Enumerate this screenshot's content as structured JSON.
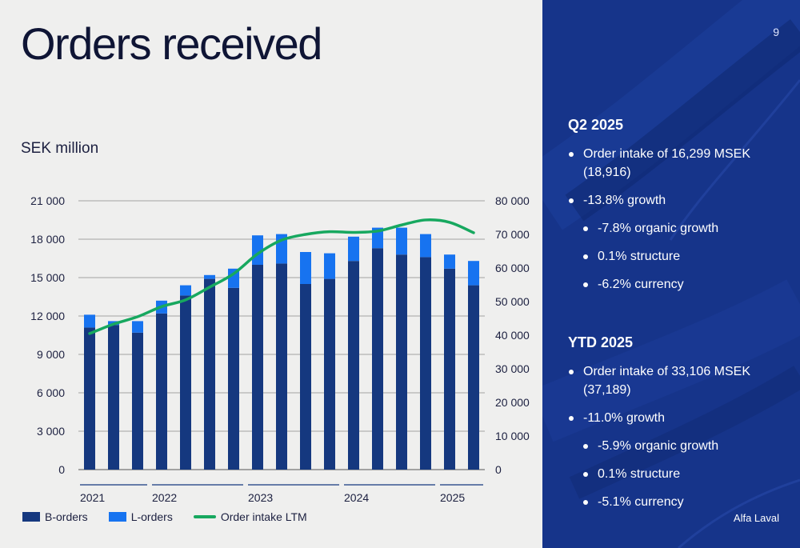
{
  "title": "Orders received",
  "unit_label": "SEK million",
  "page_number": "9",
  "brand": "Alfa Laval",
  "legend": {
    "b_orders": "B-orders",
    "l_orders": "L-orders",
    "ltm": "Order intake LTM"
  },
  "colors": {
    "b_orders": "#15387f",
    "l_orders": "#1773f0",
    "ltm": "#17a85f",
    "panel": "#16348a"
  },
  "chart_data": {
    "type": "bar",
    "stacked": true,
    "categories": [
      "2021 Q1",
      "2021 Q2",
      "2021 Q3",
      "2022 Q1",
      "2022 Q2",
      "2022 Q3",
      "2022 Q4",
      "2023 Q1",
      "2023 Q2",
      "2023 Q3",
      "2023 Q4",
      "2024 Q1",
      "2024 Q2",
      "2024 Q3",
      "2024 Q4",
      "2025 Q1",
      "2025 Q2"
    ],
    "series": [
      {
        "name": "B-orders",
        "type": "bar",
        "axis": "left",
        "values": [
          11100,
          11300,
          10700,
          12200,
          13600,
          14900,
          14200,
          16000,
          16100,
          14500,
          14900,
          16300,
          17300,
          16800,
          16600,
          15700,
          14400
        ]
      },
      {
        "name": "L-orders",
        "type": "bar",
        "axis": "left",
        "values": [
          1000,
          300,
          900,
          1000,
          800,
          300,
          1500,
          2300,
          2300,
          2500,
          2000,
          1900,
          1600,
          2100,
          1800,
          1100,
          1900
        ]
      },
      {
        "name": "Order intake LTM",
        "type": "line",
        "axis": "right",
        "values": [
          40500,
          43300,
          45500,
          48500,
          50500,
          54300,
          58300,
          64200,
          68300,
          70000,
          70800,
          70600,
          71000,
          72800,
          74300,
          73600,
          70500
        ]
      }
    ],
    "y_left": {
      "min": 0,
      "max": 21000,
      "ticks": [
        "0",
        "3 000",
        "6 000",
        "9 000",
        "12 000",
        "15 000",
        "18 000",
        "21 000"
      ]
    },
    "y_right": {
      "min": 0,
      "max": 80000,
      "ticks": [
        "0",
        "10 000",
        "20 000",
        "30 000",
        "40 000",
        "50 000",
        "60 000",
        "70 000",
        "80 000"
      ]
    },
    "year_groups": [
      {
        "label": "2021",
        "start": 0,
        "end": 2
      },
      {
        "label": "2022",
        "start": 3,
        "end": 6
      },
      {
        "label": "2023",
        "start": 7,
        "end": 10
      },
      {
        "label": "2024",
        "start": 11,
        "end": 14
      },
      {
        "label": "2025",
        "start": 15,
        "end": 16
      }
    ],
    "grid": true,
    "legend_position": "bottom-left"
  },
  "q2": {
    "heading": "Q2 2025",
    "items": [
      {
        "text": "Order intake of 16,299 MSEK (18,916)",
        "level": 0
      },
      {
        "text": "-13.8% growth",
        "level": 0
      },
      {
        "text": "-7.8% organic growth",
        "level": 1
      },
      {
        "text": "0.1% structure",
        "level": 1
      },
      {
        "text": "-6.2% currency",
        "level": 1
      }
    ]
  },
  "ytd": {
    "heading": "YTD 2025",
    "items": [
      {
        "text": "Order intake of 33,106 MSEK (37,189)",
        "level": 0
      },
      {
        "text": "-11.0% growth",
        "level": 0
      },
      {
        "text": "-5.9% organic growth",
        "level": 1
      },
      {
        "text": "0.1% structure",
        "level": 1
      },
      {
        "text": "-5.1% currency",
        "level": 1
      }
    ]
  }
}
